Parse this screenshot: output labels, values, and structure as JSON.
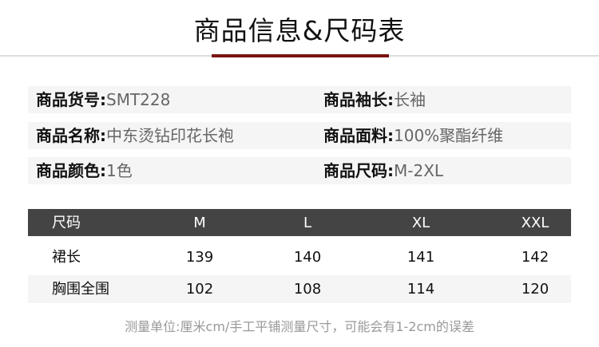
{
  "title": "商品信息&尺码表",
  "colors": {
    "accent": "#7a1212",
    "header_bg": "#444444",
    "row_alt": "#f5f5f5"
  },
  "info": [
    {
      "label": "商品货号:",
      "value": "SMT228"
    },
    {
      "label": "商品袖长:",
      "value": "长袖"
    },
    {
      "label": "商品名称:",
      "value": "中东烫钻印花长袍"
    },
    {
      "label": "商品面料:",
      "value": "100%聚酯纤维"
    },
    {
      "label": "商品颜色:",
      "value": "1色"
    },
    {
      "label": "商品尺码:",
      "value": "M-2XL"
    }
  ],
  "size_table": {
    "headers": [
      "尺码",
      "M",
      "L",
      "XL",
      "XXL"
    ],
    "rows": [
      [
        "裙长",
        "139",
        "140",
        "141",
        "142"
      ],
      [
        "胸围全围",
        "102",
        "108",
        "114",
        "120"
      ]
    ]
  },
  "note": "测量单位:厘米cm/手工平铺测量尺寸，可能会有1-2cm的误差"
}
